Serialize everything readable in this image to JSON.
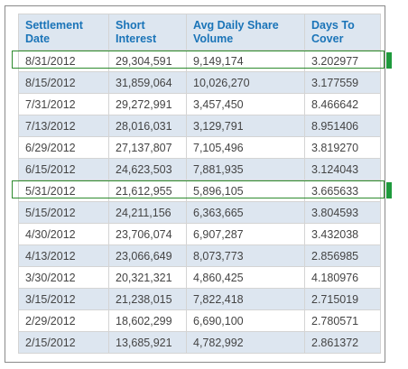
{
  "table": {
    "headers": [
      "Settlement Date",
      "Short Interest",
      "Avg Daily Share Volume",
      "Days To Cover"
    ],
    "rows": [
      [
        "8/31/2012",
        "29,304,591",
        "9,149,174",
        "3.202977"
      ],
      [
        "8/15/2012",
        "31,859,064",
        "10,026,270",
        "3.177559"
      ],
      [
        "7/31/2012",
        "29,272,991",
        "3,457,450",
        "8.466642"
      ],
      [
        "7/13/2012",
        "28,016,031",
        "3,129,791",
        "8.951406"
      ],
      [
        "6/29/2012",
        "27,137,807",
        "7,105,496",
        "3.819270"
      ],
      [
        "6/15/2012",
        "24,623,503",
        "7,881,935",
        "3.124043"
      ],
      [
        "5/31/2012",
        "21,612,955",
        "5,896,105",
        "3.665633"
      ],
      [
        "5/15/2012",
        "24,211,156",
        "6,363,665",
        "3.804593"
      ],
      [
        "4/30/2012",
        "23,706,074",
        "6,907,287",
        "3.432038"
      ],
      [
        "4/13/2012",
        "23,066,649",
        "8,073,773",
        "2.856985"
      ],
      [
        "3/30/2012",
        "20,321,321",
        "4,860,425",
        "4.180976"
      ],
      [
        "3/15/2012",
        "21,238,015",
        "7,822,418",
        "2.715019"
      ],
      [
        "2/29/2012",
        "18,602,299",
        "6,690,100",
        "2.780571"
      ],
      [
        "2/15/2012",
        "13,685,921",
        "4,782,992",
        "2.861372"
      ]
    ]
  },
  "highlighted_settlement_dates": [
    "8/31/2012",
    "5/31/2012"
  ],
  "colors": {
    "header_text": "#1a74b8",
    "header_background": "#dde6f0",
    "alternate_row_background": "#dde6f0",
    "highlight_border": "#2e8b2e",
    "highlight_tab": "#1e9a3c"
  }
}
